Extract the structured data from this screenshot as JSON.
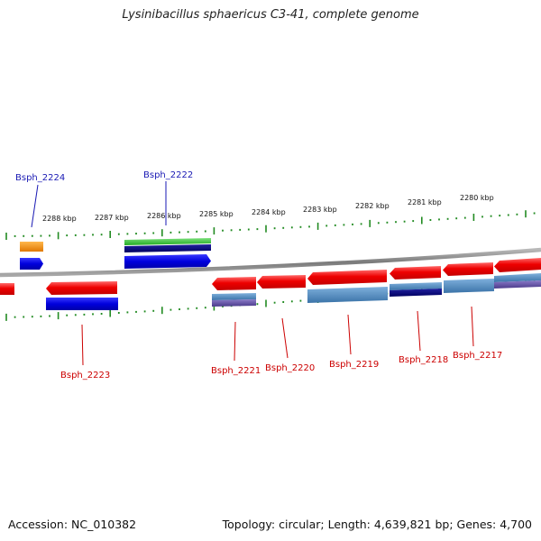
{
  "title": "Lysinibacillus sphaericus C3-41, complete genome",
  "footer": {
    "accession": "Accession: NC_010382",
    "topology": "Topology: circular; Length: 4,639,821 bp; Genes: 4,700"
  },
  "colors": {
    "forward_cds": "#0000dd",
    "reverse_cds": "#ee0000",
    "forward_label": "#1a1ab4",
    "reverse_label": "#cc0000",
    "tick": "#228b22",
    "backbone": "#888888",
    "orange_feature": "#f08c00",
    "green_feature": "#33bb33",
    "steelblue_feature": "#4682b4",
    "navy_feature": "#000080",
    "purple_feature": "#5a4a9a"
  },
  "scale": {
    "unit": "kbp",
    "labels": [
      {
        "kbp": 2288,
        "text": "2288 kbp"
      },
      {
        "kbp": 2287,
        "text": "2287 kbp"
      },
      {
        "kbp": 2286,
        "text": "2286 kbp"
      },
      {
        "kbp": 2285,
        "text": "2285 kbp"
      },
      {
        "kbp": 2284,
        "text": "2284 kbp"
      },
      {
        "kbp": 2283,
        "text": "2283 kbp"
      },
      {
        "kbp": 2282,
        "text": "2282 kbp"
      },
      {
        "kbp": 2281,
        "text": "2281 kbp"
      },
      {
        "kbp": 2280,
        "text": "2280 kbp"
      }
    ]
  },
  "genes": [
    {
      "id": "Bsph_2224",
      "label": "Bsph_2224",
      "strand": "forward"
    },
    {
      "id": "Bsph_2222",
      "label": "Bsph_2222",
      "strand": "forward"
    },
    {
      "id": "Bsph_2223",
      "label": "Bsph_2223",
      "strand": "reverse"
    },
    {
      "id": "Bsph_2221",
      "label": "Bsph_2221",
      "strand": "reverse"
    },
    {
      "id": "Bsph_2220",
      "label": "Bsph_2220",
      "strand": "reverse"
    },
    {
      "id": "Bsph_2219",
      "label": "Bsph_2219",
      "strand": "reverse"
    },
    {
      "id": "Bsph_2218",
      "label": "Bsph_2218",
      "strand": "reverse"
    },
    {
      "id": "Bsph_2217",
      "label": "Bsph_2217",
      "strand": "reverse"
    }
  ]
}
